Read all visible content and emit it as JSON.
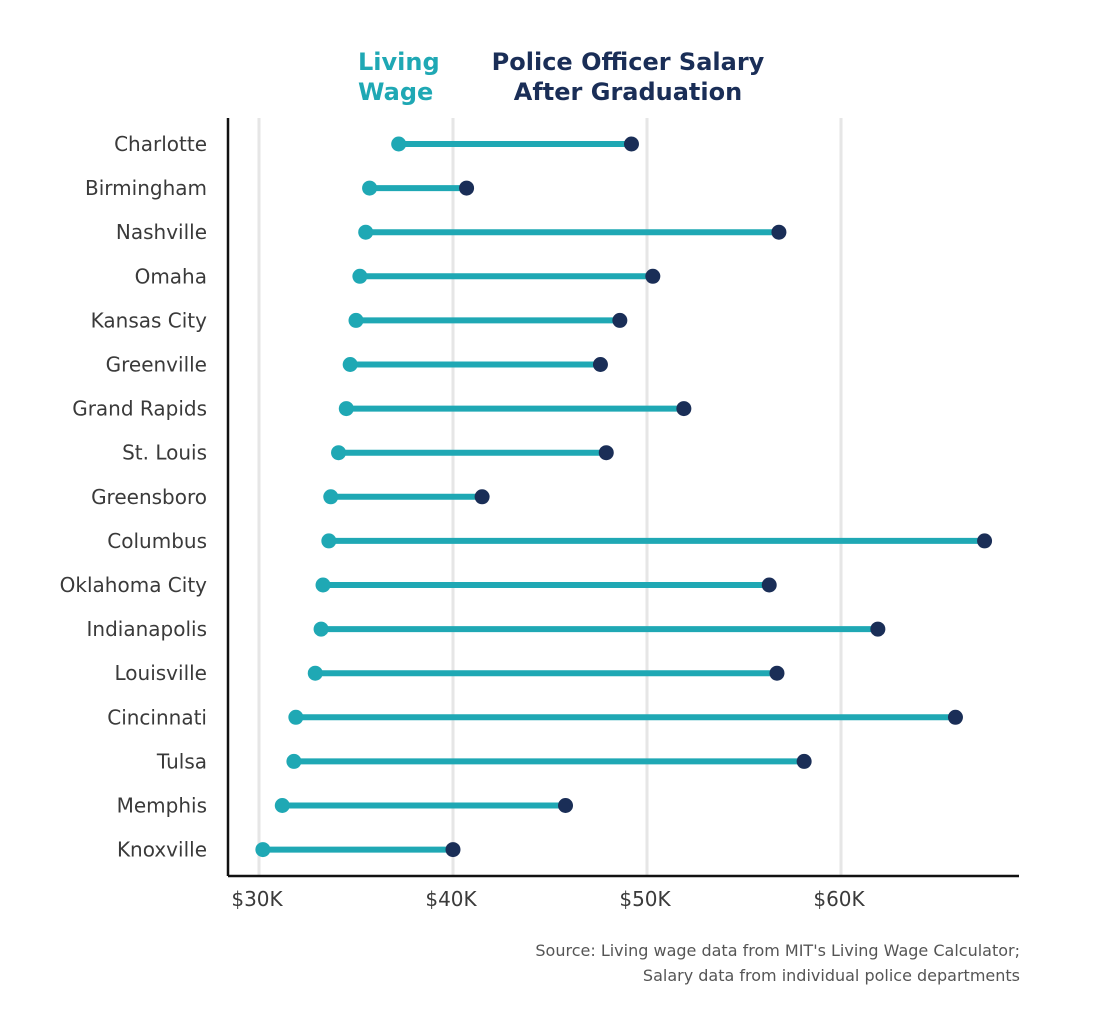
{
  "colors": {
    "living": "#1fa8b4",
    "police": "#1a2e57",
    "grid": "#e6e6e6",
    "axis": "#111111"
  },
  "legend": {
    "living_lines": [
      "Living",
      "Wage"
    ],
    "police_lines": [
      "Police Officer Salary",
      "After Graduation"
    ]
  },
  "source_lines": [
    "Source: Living wage data from MIT's Living Wage Calculator;",
    "Salary data from individual police departments"
  ],
  "chart_data": {
    "type": "dumbbell",
    "categories": [
      "Charlotte",
      "Birmingham",
      "Nashville",
      "Omaha",
      "Kansas City",
      "Greenville",
      "Grand Rapids",
      "St. Louis",
      "Greensboro",
      "Columbus",
      "Oklahoma City",
      "Indianapolis",
      "Louisville",
      "Cincinnati",
      "Tulsa",
      "Memphis",
      "Knoxville"
    ],
    "series": [
      {
        "name": "Living Wage",
        "values": [
          37200,
          35700,
          35500,
          35200,
          35000,
          34700,
          34500,
          34100,
          33700,
          33600,
          33300,
          33200,
          32900,
          31900,
          31800,
          31200,
          30200
        ]
      },
      {
        "name": "Police Officer Salary After Graduation",
        "values": [
          49200,
          40700,
          56800,
          50300,
          48600,
          47600,
          51900,
          47900,
          41500,
          67400,
          56300,
          61900,
          56700,
          65900,
          58100,
          45800,
          40000
        ]
      }
    ],
    "x_ticks": [
      30000,
      40000,
      50000,
      60000
    ],
    "x_tick_labels": [
      "$30K",
      "$40K",
      "$50K",
      "$60K"
    ],
    "xlim": [
      28500,
      69000
    ],
    "grid": true,
    "legend_position": "top"
  }
}
